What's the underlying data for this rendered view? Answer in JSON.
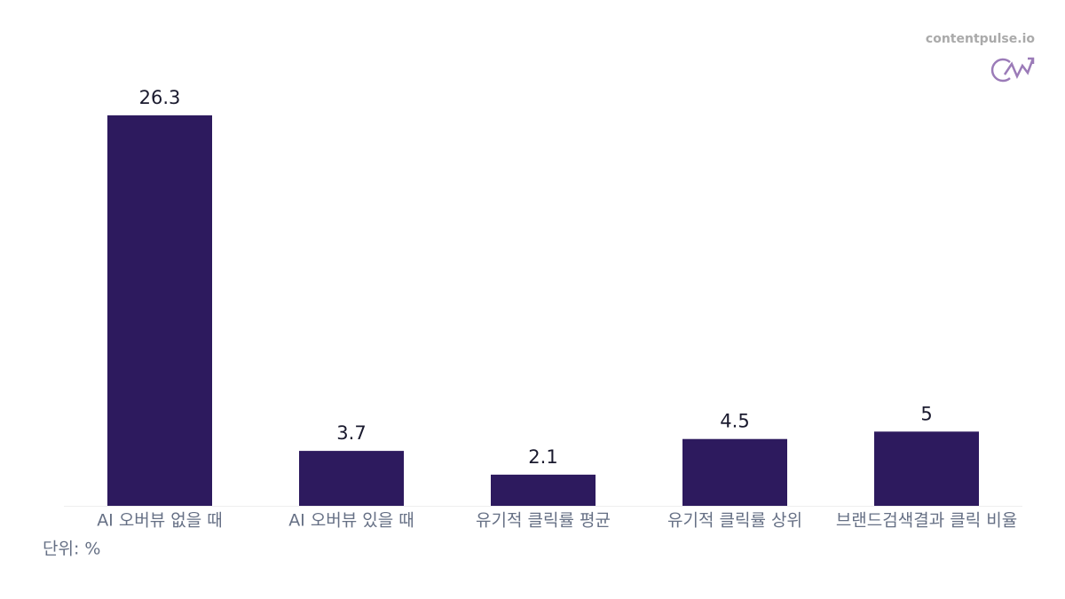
{
  "chart_data": {
    "type": "bar",
    "categories": [
      "AI 오버뷰 없을 때",
      "AI 오버뷰 있을 때",
      "유기적 클릭률 평균",
      "유기적 클릭률 상위",
      "브랜드검색결과 클릭 비율"
    ],
    "values": [
      26.3,
      3.7,
      2.1,
      4.5,
      5
    ],
    "color": "#2d1a5e",
    "unit_label": "단위: %",
    "watermark": "contentpulse.io"
  }
}
